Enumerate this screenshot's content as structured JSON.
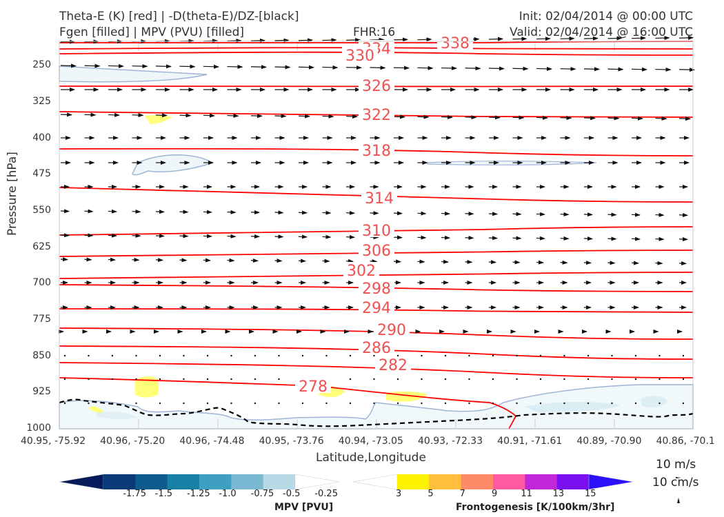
{
  "header": {
    "title_line1": "Theta-E (K) [red] | -D(theta-E)/DZ-[black]",
    "title_line2": "Fgen [filled] | MPV (PVU) [filled]",
    "fhr": "FHR:16",
    "init": "Init: 02/04/2014 @ 00:00 UTC",
    "valid": "Valid: 02/04/2014 @ 16:00 UTC"
  },
  "chart_data": {
    "type": "contour cross-section",
    "xlabel": "Latitude,Longitude",
    "ylabel": "Pressure [hPa]",
    "y_ticks": [
      250,
      325,
      400,
      475,
      550,
      625,
      700,
      775,
      850,
      925,
      1000
    ],
    "ylim": [
      1000,
      200
    ],
    "x_ticks": [
      "40.95, -75.92",
      "40.96, -75.20",
      "40.96, -74.48",
      "40.95, -73.76",
      "40.94, -73.05",
      "40.93, -72.33",
      "40.91, -71.61",
      "40.89, -70.90",
      "40.86, -70.1"
    ],
    "theta_e_contours": [
      {
        "label": "338",
        "color": "#ff0000"
      },
      {
        "label": "334",
        "color": "#ff0000"
      },
      {
        "label": "330",
        "color": "#ff0000"
      },
      {
        "label": "326",
        "color": "#ff0000"
      },
      {
        "label": "322",
        "color": "#ff0000"
      },
      {
        "label": "318",
        "color": "#ff0000"
      },
      {
        "label": "314",
        "color": "#ff0000"
      },
      {
        "label": "310",
        "color": "#ff0000"
      },
      {
        "label": "306",
        "color": "#ff0000"
      },
      {
        "label": "302",
        "color": "#ff0000"
      },
      {
        "label": "298",
        "color": "#ff0000"
      },
      {
        "label": "294",
        "color": "#ff0000"
      },
      {
        "label": "290",
        "color": "#ff0000"
      },
      {
        "label": "286",
        "color": "#ff0000"
      },
      {
        "label": "282",
        "color": "#ff0000"
      },
      {
        "label": "278",
        "color": "#ff0000"
      }
    ],
    "vector_key": {
      "horizontal": "10 m/s",
      "vertical": "10 cm/s"
    },
    "mpv_colorbar": {
      "title": "MPV [PVU]",
      "labels": [
        "-1.75",
        "-1.5",
        "-1.25",
        "-1.0",
        "-0.75",
        "-0.5",
        "-0.25"
      ],
      "colors": [
        "#051c5c",
        "#0b3a7a",
        "#0f5b8f",
        "#1680a5",
        "#3f9fc0",
        "#7ab8d2",
        "#b7dae6",
        "#ffffff"
      ]
    },
    "fgen_colorbar": {
      "title": "Frontogenesis [K/100km/3hr]",
      "labels": [
        "3",
        "5",
        "7",
        "9",
        "11",
        "13",
        "15"
      ],
      "colors": [
        "#ffffff",
        "#fff200",
        "#ffbe3c",
        "#ff8a6a",
        "#ff5aa0",
        "#c328d8",
        "#7a10f0",
        "#2a10f8"
      ]
    }
  }
}
